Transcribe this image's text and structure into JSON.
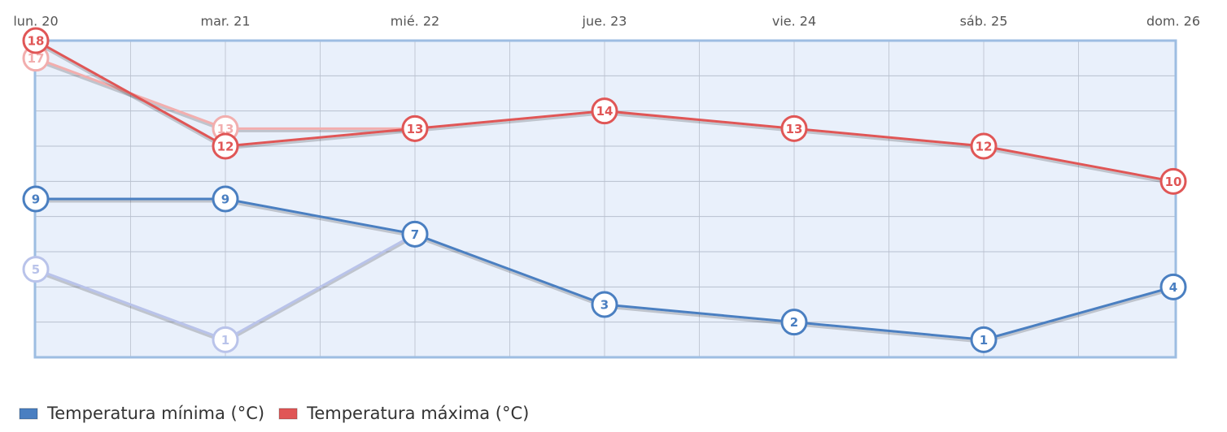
{
  "chart_data": {
    "type": "line",
    "categories": [
      "lun. 20",
      "mar. 21",
      "mié. 22",
      "jue. 23",
      "vie. 24",
      "sáb. 25",
      "dom. 26"
    ],
    "series": [
      {
        "color": "#b9c3ea",
        "values": [
          5,
          1,
          7,
          null,
          null,
          null,
          null
        ]
      },
      {
        "color": "#f2aeae",
        "values": [
          17,
          13,
          13,
          null,
          null,
          null,
          null
        ]
      },
      {
        "name": "Temperatura mínima (°C)",
        "color": "#4a7fc1",
        "values": [
          9,
          9,
          7,
          3,
          2,
          1,
          4
        ]
      },
      {
        "name": "Temperatura máxima (°C)",
        "color": "#e05656",
        "values": [
          18,
          12,
          13,
          14,
          13,
          12,
          10
        ]
      }
    ],
    "ylim": [
      0,
      18
    ],
    "yticks": [
      0,
      2,
      4,
      6,
      8,
      10,
      12,
      14,
      16,
      18
    ],
    "grid": true
  }
}
